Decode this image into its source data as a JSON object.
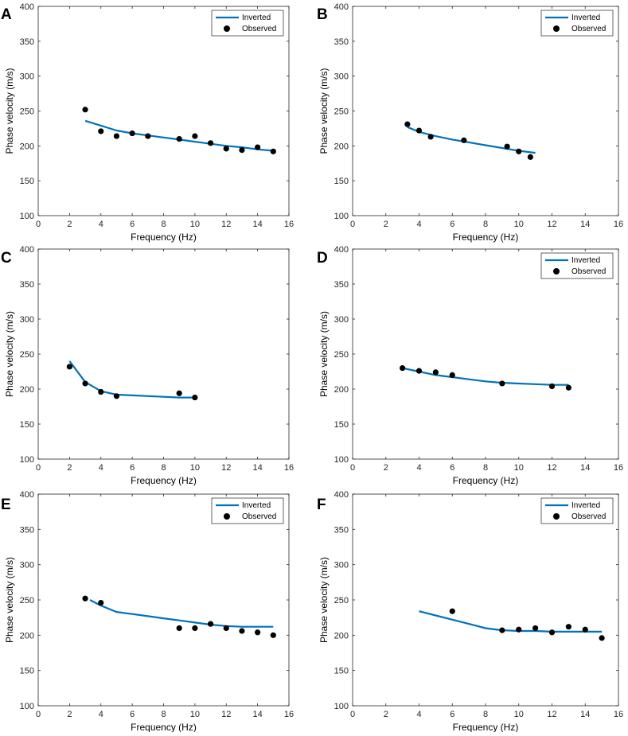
{
  "chart_data": [
    {
      "panel": "A",
      "type": "line+scatter",
      "xlabel": "Frequency (Hz)",
      "ylabel": "Phase velocity (m/s)",
      "xlim": [
        0,
        16
      ],
      "ylim": [
        100,
        400
      ],
      "xticks": [
        0,
        2,
        4,
        6,
        8,
        10,
        12,
        14,
        16
      ],
      "yticks": [
        100,
        150,
        200,
        250,
        300,
        350,
        400
      ],
      "legend": {
        "show": true,
        "position": "top-right",
        "inverted_label": "Inverted",
        "observed_label": "Observed"
      },
      "series": [
        {
          "name": "Inverted",
          "type": "line",
          "x": [
            3,
            4,
            5,
            6,
            7,
            8,
            9,
            10,
            11,
            12,
            13,
            14,
            15
          ],
          "y": [
            236,
            229,
            222,
            218,
            215,
            212,
            209,
            206,
            203,
            200,
            198,
            195,
            193
          ]
        },
        {
          "name": "Observed",
          "type": "scatter",
          "x": [
            3,
            4,
            5,
            6,
            7,
            9,
            10,
            11,
            12,
            13,
            14,
            15
          ],
          "y": [
            252,
            221,
            214,
            218,
            214,
            210,
            214,
            204,
            196,
            194,
            198,
            192
          ]
        }
      ]
    },
    {
      "panel": "B",
      "type": "line+scatter",
      "xlabel": "Frequency (Hz)",
      "ylabel": "Phase velocity (m/s)",
      "xlim": [
        0,
        16
      ],
      "ylim": [
        100,
        400
      ],
      "xticks": [
        0,
        2,
        4,
        6,
        8,
        10,
        12,
        14,
        16
      ],
      "yticks": [
        100,
        150,
        200,
        250,
        300,
        350,
        400
      ],
      "legend": {
        "show": true,
        "position": "top-right",
        "inverted_label": "Inverted",
        "observed_label": "Observed"
      },
      "series": [
        {
          "name": "Inverted",
          "type": "line",
          "x": [
            3.3,
            4,
            5,
            6,
            7,
            8,
            9,
            10,
            11
          ],
          "y": [
            227,
            220,
            214,
            209,
            205,
            201,
            197,
            193,
            190
          ]
        },
        {
          "name": "Observed",
          "type": "scatter",
          "x": [
            3.3,
            4,
            4.7,
            6.7,
            9.3,
            10,
            10.7
          ],
          "y": [
            231,
            222,
            213,
            208,
            199,
            192,
            184
          ]
        }
      ]
    },
    {
      "panel": "C",
      "type": "line+scatter",
      "xlabel": "Frequency (Hz)",
      "ylabel": "Phase velocity (m/s)",
      "xlim": [
        0,
        16
      ],
      "ylim": [
        100,
        400
      ],
      "xticks": [
        0,
        2,
        4,
        6,
        8,
        10,
        12,
        14,
        16
      ],
      "yticks": [
        100,
        150,
        200,
        250,
        300,
        350,
        400
      ],
      "legend": {
        "show": false
      },
      "series": [
        {
          "name": "Inverted",
          "type": "line",
          "x": [
            2,
            3,
            4,
            5,
            6,
            7,
            8,
            9,
            10
          ],
          "y": [
            240,
            210,
            197,
            192,
            191,
            190,
            189,
            188,
            188
          ]
        },
        {
          "name": "Observed",
          "type": "scatter",
          "x": [
            2,
            3,
            4,
            5,
            9,
            10
          ],
          "y": [
            232,
            208,
            196,
            190,
            194,
            188
          ]
        }
      ]
    },
    {
      "panel": "D",
      "type": "line+scatter",
      "xlabel": "Frequency (Hz)",
      "ylabel": "Phase velocity (m/s)",
      "xlim": [
        0,
        16
      ],
      "ylim": [
        100,
        400
      ],
      "xticks": [
        0,
        2,
        4,
        6,
        8,
        10,
        12,
        14,
        16
      ],
      "yticks": [
        100,
        150,
        200,
        250,
        300,
        350,
        400
      ],
      "legend": {
        "show": true,
        "position": "top-right",
        "inverted_label": "Inverted",
        "observed_label": "Observed"
      },
      "series": [
        {
          "name": "Inverted",
          "type": "line",
          "x": [
            3,
            4,
            5,
            6,
            7,
            8,
            9,
            10,
            11,
            12,
            13
          ],
          "y": [
            230,
            225,
            220,
            217,
            214,
            211,
            209,
            208,
            207,
            206,
            206
          ]
        },
        {
          "name": "Observed",
          "type": "scatter",
          "x": [
            3,
            4,
            5,
            6,
            9,
            12,
            13
          ],
          "y": [
            230,
            226,
            224,
            220,
            208,
            204,
            202
          ]
        }
      ]
    },
    {
      "panel": "E",
      "type": "line+scatter",
      "xlabel": "Frequency (Hz)",
      "ylabel": "Phase velocity (m/s)",
      "xlim": [
        0,
        16
      ],
      "ylim": [
        100,
        400
      ],
      "xticks": [
        0,
        2,
        4,
        6,
        8,
        10,
        12,
        14,
        16
      ],
      "yticks": [
        100,
        150,
        200,
        250,
        300,
        350,
        400
      ],
      "legend": {
        "show": true,
        "position": "top-right",
        "inverted_label": "Inverted",
        "observed_label": "Observed"
      },
      "series": [
        {
          "name": "Inverted",
          "type": "line",
          "x": [
            3.3,
            4,
            5,
            6,
            7,
            8,
            9,
            10,
            11,
            12,
            13,
            14,
            15
          ],
          "y": [
            250,
            242,
            233,
            230,
            227,
            224,
            221,
            218,
            215,
            213,
            212,
            212,
            212
          ]
        },
        {
          "name": "Observed",
          "type": "scatter",
          "x": [
            3,
            4,
            9,
            10,
            11,
            12,
            13,
            14,
            15
          ],
          "y": [
            252,
            246,
            210,
            210,
            216,
            210,
            206,
            204,
            200
          ]
        }
      ]
    },
    {
      "panel": "F",
      "type": "line+scatter",
      "xlabel": "Frequency (Hz)",
      "ylabel": "Phase velocity (m/s)",
      "xlim": [
        0,
        16
      ],
      "ylim": [
        100,
        400
      ],
      "xticks": [
        0,
        2,
        4,
        6,
        8,
        10,
        12,
        14,
        16
      ],
      "yticks": [
        100,
        150,
        200,
        250,
        300,
        350,
        400
      ],
      "legend": {
        "show": true,
        "position": "top-right",
        "inverted_label": "Inverted",
        "observed_label": "Observed"
      },
      "series": [
        {
          "name": "Inverted",
          "type": "line",
          "x": [
            4,
            5,
            6,
            7,
            8,
            9,
            10,
            11,
            12,
            13,
            14,
            15
          ],
          "y": [
            234,
            228,
            222,
            216,
            210,
            207,
            206,
            206,
            205,
            205,
            205,
            205
          ]
        },
        {
          "name": "Observed",
          "type": "scatter",
          "x": [
            6,
            9,
            10,
            11,
            12,
            13,
            14,
            15
          ],
          "y": [
            234,
            207,
            208,
            210,
            204,
            212,
            208,
            196
          ]
        }
      ]
    }
  ],
  "colors": {
    "inverted_line": "#0072BD",
    "observed_marker": "#000000",
    "axis": "#262626",
    "tick_text": "#262626"
  }
}
